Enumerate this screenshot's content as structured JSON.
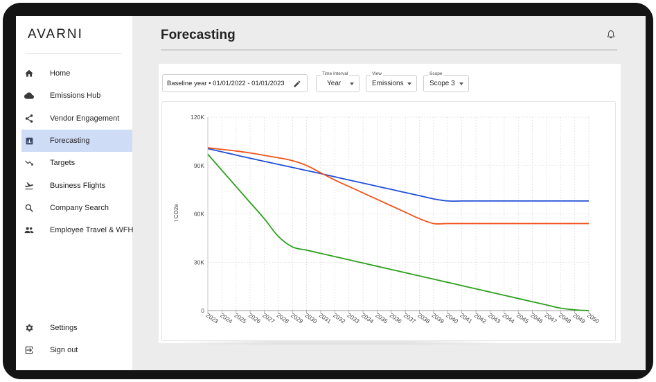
{
  "app": {
    "logo": "AVARNI"
  },
  "sidebar": {
    "items": [
      {
        "label": "Home",
        "icon": "home-icon"
      },
      {
        "label": "Emissions Hub",
        "icon": "cloud-icon"
      },
      {
        "label": "Vendor Engagement",
        "icon": "share-icon"
      },
      {
        "label": "Forecasting",
        "icon": "chart-icon",
        "active": true
      },
      {
        "label": "Targets",
        "icon": "trending-down-icon"
      },
      {
        "label": "Business Flights",
        "icon": "flight-takeoff-icon"
      },
      {
        "label": "Company Search",
        "icon": "search-icon"
      },
      {
        "label": "Employee Travel & WFH",
        "icon": "people-icon"
      }
    ],
    "bottom_items": [
      {
        "label": "Settings",
        "icon": "gear-icon"
      },
      {
        "label": "Sign out",
        "icon": "sign-out-icon"
      }
    ]
  },
  "header": {
    "title": "Forecasting",
    "icon": "bell-icon"
  },
  "controls": {
    "baseline": "Baseline year • 01/01/2022 - 01/01/2023",
    "time_interval": {
      "legend": "Time Interval",
      "value": "Year"
    },
    "view": {
      "legend": "View",
      "value": "Emissions"
    },
    "scope": {
      "legend": "Scope",
      "value": "Scope 3"
    }
  },
  "colors": {
    "accent_active": "#cfdcf6",
    "blue": "#1f4fd6",
    "orange": "#f0531a",
    "green": "#2ca01c"
  },
  "chart_data": {
    "type": "line",
    "title": "",
    "xlabel": "",
    "ylabel": "t CO2e",
    "x": [
      2023,
      2024,
      2025,
      2026,
      2027,
      2028,
      2029,
      2030,
      2031,
      2032,
      2033,
      2034,
      2035,
      2036,
      2037,
      2038,
      2039,
      2040,
      2041,
      2042,
      2043,
      2044,
      2045,
      2046,
      2047,
      2048,
      2049,
      2050
    ],
    "ylim": [
      0,
      120000
    ],
    "yticks": [
      0,
      30000,
      60000,
      90000,
      120000
    ],
    "ytick_labels": [
      "0",
      "30K",
      "60K",
      "90K",
      "120K"
    ],
    "grid": true,
    "series": [
      {
        "color": "#1f4fd6",
        "values": [
          100500,
          98500,
          96500,
          94500,
          92600,
          90700,
          88800,
          86900,
          85000,
          83000,
          81000,
          79100,
          77100,
          75200,
          73200,
          71300,
          69300,
          68000,
          68000,
          68000,
          68000,
          68000,
          68000,
          68000,
          68000,
          68000,
          68000,
          68000
        ]
      },
      {
        "color": "#f0531a",
        "values": [
          101000,
          100000,
          99000,
          97800,
          96300,
          94800,
          93000,
          90000,
          85500,
          81000,
          77000,
          73000,
          69000,
          65000,
          61000,
          57000,
          54000,
          54000,
          54000,
          54000,
          54000,
          54000,
          54000,
          54000,
          54000,
          54000,
          54000,
          54000
        ]
      },
      {
        "color": "#2ca01c",
        "values": [
          97000,
          87000,
          77000,
          67000,
          57000,
          46000,
          39500,
          37500,
          35500,
          33500,
          31500,
          29500,
          27500,
          25500,
          23500,
          21500,
          19500,
          17500,
          15500,
          13500,
          11500,
          9500,
          7500,
          5500,
          3500,
          1500,
          500,
          0
        ]
      }
    ]
  }
}
